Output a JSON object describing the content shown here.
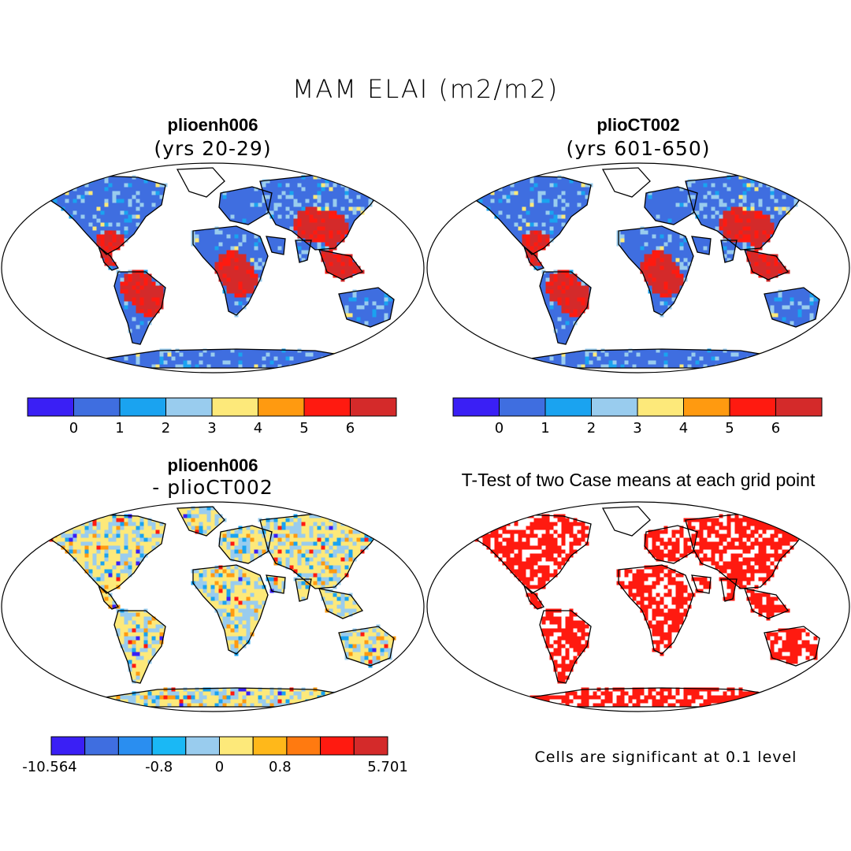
{
  "title": "MAM ELAI (m2/m2)",
  "panels": [
    {
      "title": "plioenh006",
      "subtitle": "(yrs 20-29)"
    },
    {
      "title": "plioCT002",
      "subtitle": "(yrs 601-650)"
    },
    {
      "title": "plioenh006",
      "subtitle": "- plioCT002"
    },
    {
      "title": "T-Test of two Case means at each grid point",
      "subtitle": ""
    }
  ],
  "colorbar_top": {
    "colors": [
      "#3a1ff5",
      "#3f6ee0",
      "#1aa3f0",
      "#99ccee",
      "#fde97a",
      "#ff9a10",
      "#ff1a10",
      "#d42a2a"
    ],
    "ticks": [
      "0",
      "1",
      "2",
      "3",
      "4",
      "5",
      "6"
    ]
  },
  "colorbar_diff": {
    "colors": [
      "#3a1ff5",
      "#3f6ee0",
      "#2a8ef0",
      "#1ab8f5",
      "#99ccee",
      "#fde97a",
      "#ffb81a",
      "#ff7a10",
      "#ff1a10",
      "#d42a2a"
    ],
    "ticks": [
      "-10.564",
      "-0.8",
      "0",
      "0.8",
      "5.701"
    ]
  },
  "note": "Cells are significant at 0.1 level",
  "map_colors": {
    "land_low": "#3f6ee0",
    "land_mid": "#99ccee",
    "land_high": "#ff1a10",
    "land_top": "#d42a2a",
    "diff_base": "#fde97a",
    "sig": "#ff1a10"
  }
}
